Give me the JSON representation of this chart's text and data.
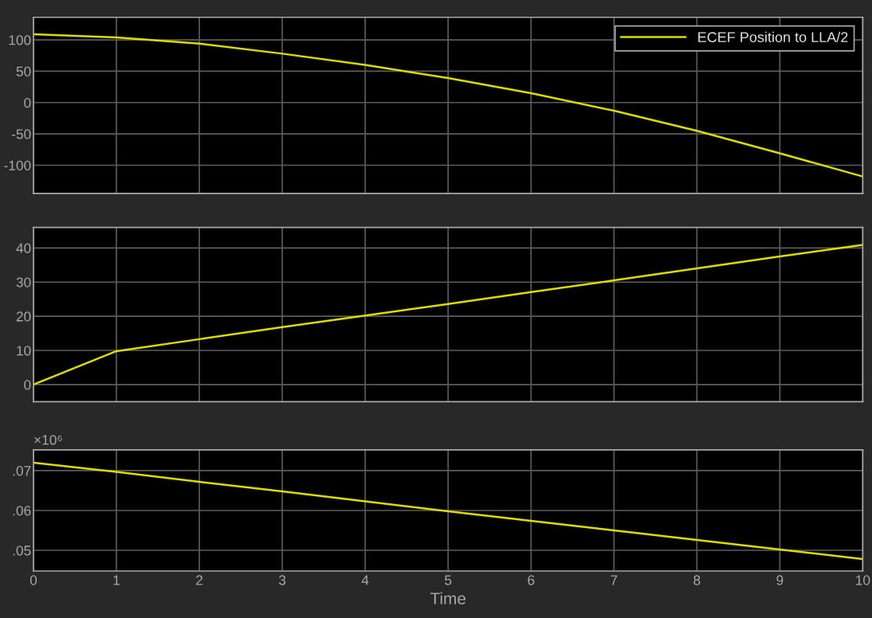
{
  "chart_data": [
    {
      "type": "line",
      "x": [
        0,
        1,
        2,
        3,
        4,
        5,
        6,
        7,
        8,
        9,
        10
      ],
      "series": [
        {
          "name": "ECEF Position to LLA/2",
          "color": "#dcdc00",
          "values": [
            109,
            104,
            94,
            78,
            60,
            39,
            15,
            -13,
            -45,
            -81,
            -118
          ]
        }
      ],
      "xlim": [
        0,
        10
      ],
      "xticks": [
        0,
        1,
        2,
        3,
        4,
        5,
        6,
        7,
        8,
        9,
        10
      ],
      "ylim": [
        -145,
        136
      ],
      "yticks": [
        -100,
        -50,
        0,
        50,
        100
      ],
      "tick_labels": "y",
      "grid": true,
      "legend": "top right",
      "line_style": "solid"
    },
    {
      "type": "line",
      "x": [
        0,
        1,
        2,
        3,
        4,
        5,
        6,
        7,
        8,
        9,
        10
      ],
      "series": [
        {
          "color": "#dcdc00",
          "values": [
            0,
            9.8,
            13.3,
            16.8,
            20.2,
            23.6,
            27.1,
            30.5,
            34,
            37.5,
            40.9
          ]
        }
      ],
      "xlim": [
        0,
        10
      ],
      "xticks": [
        0,
        1,
        2,
        3,
        4,
        5,
        6,
        7,
        8,
        9,
        10
      ],
      "ylim": [
        -5,
        46
      ],
      "yticks": [
        0,
        10,
        20,
        30,
        40
      ],
      "tick_labels": "y",
      "grid": true,
      "line_style": "solid"
    },
    {
      "type": "line",
      "x": [
        0,
        1,
        2,
        3,
        4,
        5,
        6,
        7,
        8,
        9,
        10
      ],
      "xlabel": "Time",
      "annotations": [
        "×10⁶"
      ],
      "series": [
        {
          "color": "#dcdc00",
          "values": [
            0.072,
            0.0697,
            0.0672,
            0.0648,
            0.0623,
            0.0598,
            0.0574,
            0.055,
            0.0526,
            0.0502,
            0.0478
          ]
        }
      ],
      "xlim": [
        0,
        10
      ],
      "xticks": [
        0,
        1,
        2,
        3,
        4,
        5,
        6,
        7,
        8,
        9,
        10
      ],
      "ylim": [
        0.0448,
        0.0752
      ],
      "yticks": [
        {
          "value": 0.05,
          "label": ".05"
        },
        {
          "value": 0.06,
          "label": ".06"
        },
        {
          "value": 0.07,
          "label": ".07"
        }
      ],
      "grid": true,
      "line_style": "solid"
    }
  ]
}
